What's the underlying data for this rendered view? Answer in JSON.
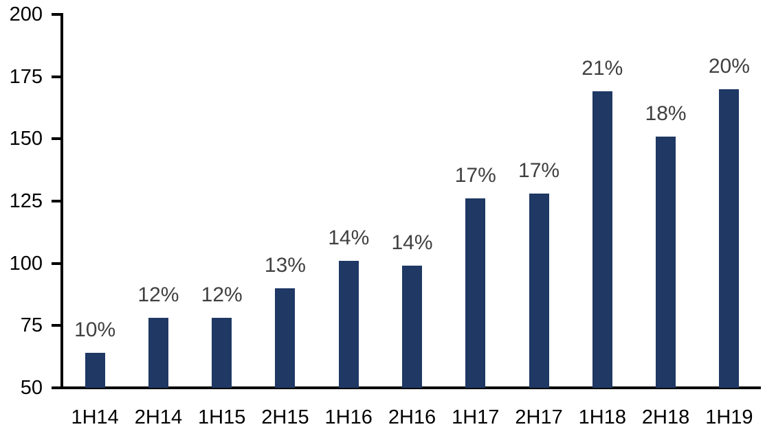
{
  "chart_data": {
    "type": "bar",
    "title": "",
    "xlabel": "",
    "ylabel": "",
    "categories": [
      "1H14",
      "2H14",
      "1H15",
      "2H15",
      "1H16",
      "2H16",
      "1H17",
      "2H17",
      "1H18",
      "2H18",
      "1H19"
    ],
    "values": [
      64,
      78,
      78,
      90,
      101,
      99,
      126,
      128,
      169,
      151,
      170
    ],
    "bar_labels": [
      "10%",
      "12%",
      "12%",
      "13%",
      "14%",
      "14%",
      "17%",
      "17%",
      "21%",
      "18%",
      "20%"
    ],
    "ylim": [
      50,
      200
    ],
    "yticks": [
      50,
      75,
      100,
      125,
      150,
      175,
      200
    ],
    "grid": false,
    "legend": "none",
    "colors": {
      "bar": "#1F3864",
      "bar_label": "#404040",
      "axis": "#000000",
      "background": "#FFFFFF"
    }
  }
}
